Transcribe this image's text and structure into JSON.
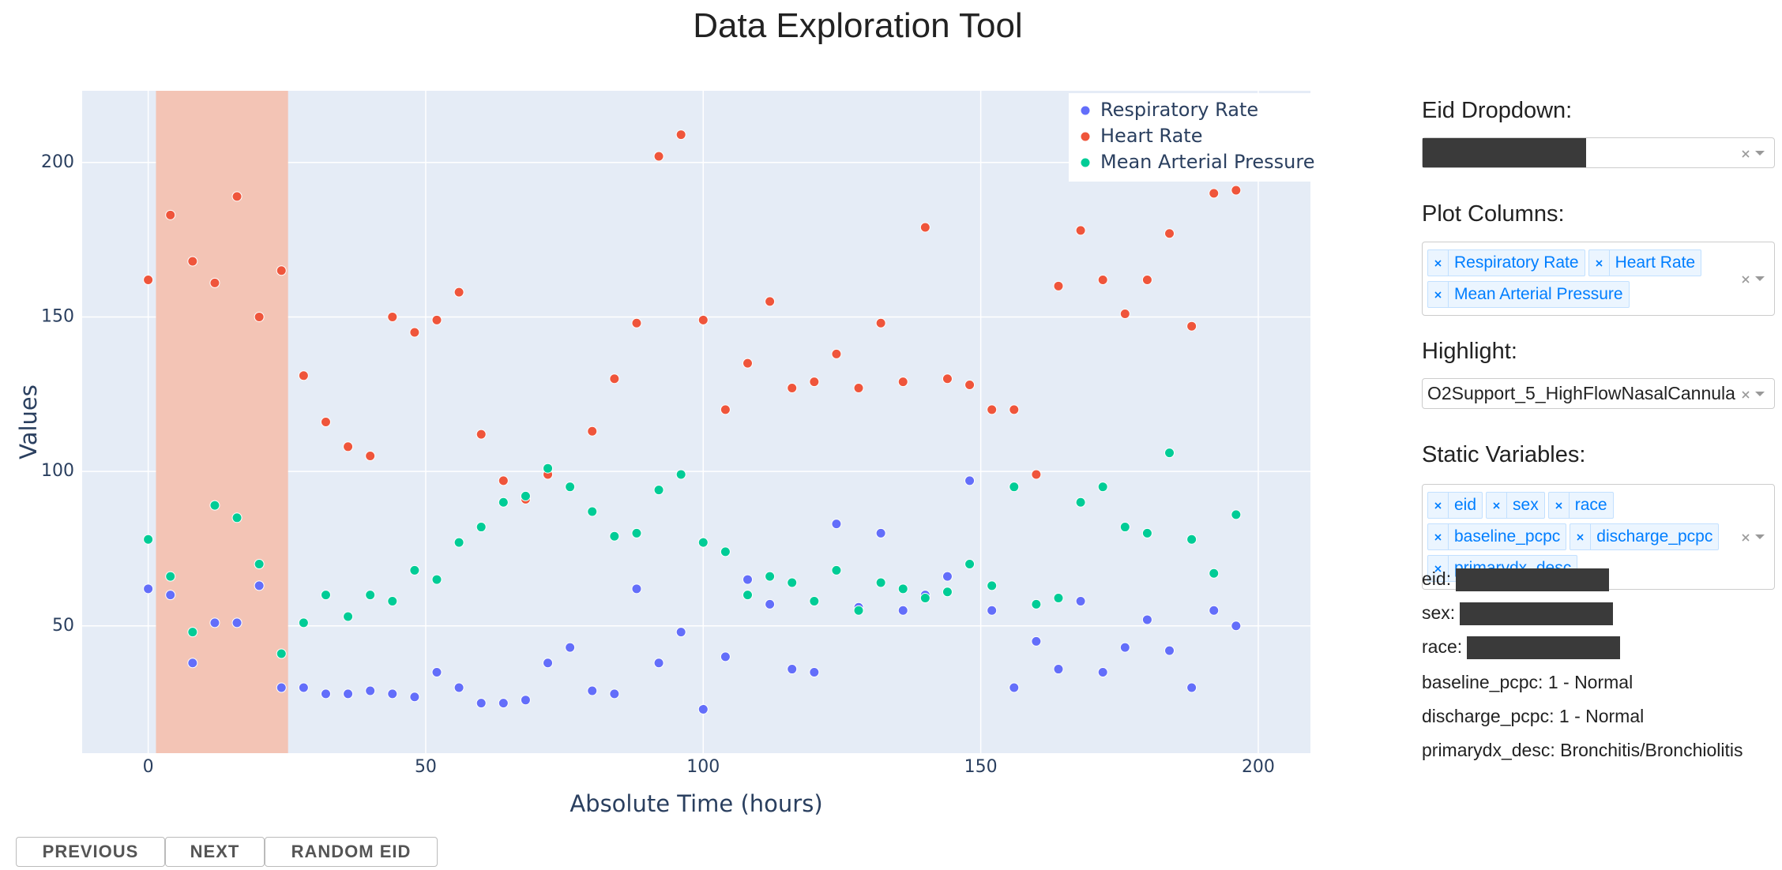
{
  "header": {
    "title": "Data Exploration Tool"
  },
  "chart_data": {
    "type": "scatter",
    "xlabel": "Absolute Time (hours)",
    "ylabel": "Values",
    "x": [
      0,
      4,
      8,
      12,
      16,
      20,
      24,
      28,
      32,
      36,
      40,
      44,
      48,
      52,
      56,
      60,
      64,
      68,
      72,
      76,
      80,
      84,
      88,
      92,
      96,
      100,
      104,
      108,
      112,
      116,
      120,
      124,
      128,
      132,
      136,
      140,
      144,
      148,
      152,
      156,
      160,
      164,
      168,
      172,
      176,
      180,
      184,
      188,
      192,
      196
    ],
    "series": [
      {
        "name": "Respiratory Rate",
        "color": "#636efa",
        "values": [
          62,
          60,
          38,
          51,
          51,
          63,
          30,
          30,
          28,
          28,
          29,
          28,
          27,
          35,
          30,
          25,
          25,
          26,
          38,
          43,
          29,
          28,
          62,
          38,
          48,
          23,
          40,
          65,
          57,
          36,
          35,
          83,
          56,
          80,
          55,
          60,
          66,
          97,
          55,
          30,
          45,
          36,
          58,
          35,
          43,
          52,
          42,
          30,
          55,
          50
        ]
      },
      {
        "name": "Heart Rate",
        "color": "#ef553b",
        "values": [
          162,
          183,
          168,
          161,
          189,
          150,
          165,
          131,
          116,
          108,
          105,
          150,
          145,
          149,
          158,
          112,
          97,
          91,
          99,
          95,
          113,
          130,
          148,
          202,
          209,
          149,
          120,
          135,
          155,
          127,
          129,
          138,
          127,
          148,
          129,
          179,
          130,
          128,
          120,
          120,
          99,
          160,
          178,
          162,
          151,
          162,
          177,
          147,
          190,
          191
        ]
      },
      {
        "name": "Mean Arterial Pressure",
        "color": "#00cc96",
        "values": [
          78,
          66,
          48,
          89,
          85,
          70,
          41,
          51,
          60,
          53,
          60,
          58,
          68,
          65,
          77,
          82,
          90,
          92,
          101,
          95,
          87,
          79,
          80,
          94,
          99,
          77,
          74,
          60,
          66,
          64,
          58,
          68,
          55,
          64,
          62,
          59,
          61,
          70,
          63,
          95,
          57,
          59,
          90,
          95,
          82,
          80,
          106,
          78,
          67,
          86
        ]
      }
    ],
    "xlim": [
      -11.9,
      209.4
    ],
    "ylim": [
      8.8,
      223.2
    ],
    "xticks": [
      0,
      50,
      100,
      150,
      200
    ],
    "yticks": [
      50,
      100,
      150,
      200
    ],
    "grid": true,
    "legend": "top-right",
    "plot_bgcolor": "#e5ecf6",
    "highlight_span": [
      1.4,
      25.2
    ],
    "highlight_color": "#f3c4b5"
  },
  "controls": {
    "eid_dropdown": {
      "label": "Eid Dropdown:"
    },
    "plot_columns": {
      "label": "Plot Columns:",
      "tags": [
        "Respiratory Rate",
        "Heart Rate",
        "Mean Arterial Pressure"
      ]
    },
    "highlight": {
      "label": "Highlight:",
      "value": "O2Support_5_HighFlowNasalCannula"
    },
    "static_variables": {
      "label": "Static Variables:",
      "tags": [
        "eid",
        "sex",
        "race",
        "baseline_pcpc",
        "discharge_pcpc",
        "primarydx_desc"
      ]
    },
    "static_values": [
      "eid:",
      "sex:",
      "race:",
      "baseline_pcpc: 1 - Normal",
      "discharge_pcpc: 1 - Normal",
      "primarydx_desc: Bronchitis/Bronchiolitis"
    ]
  },
  "buttons": [
    "PREVIOUS",
    "NEXT",
    "RANDOM EID"
  ]
}
